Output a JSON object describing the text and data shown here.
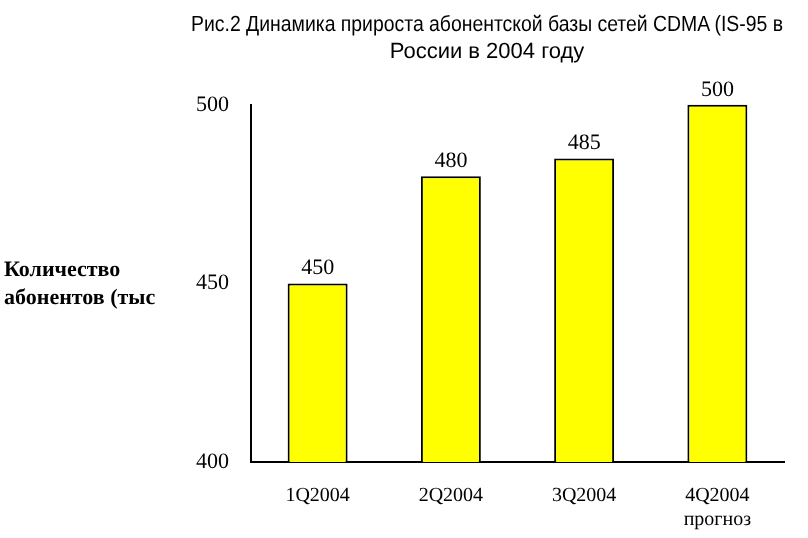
{
  "chart_data": {
    "type": "bar",
    "title": "Рис.2 Динамика прироста абонентской базы сетей CDMA (IS-95 в России в 2004 году",
    "ylabel": "Количество абонентов (тыс",
    "categories": [
      "1Q2004",
      "2Q2004",
      "3Q2004",
      "4Q2004\nпрогноз"
    ],
    "values": [
      450,
      480,
      485,
      500
    ],
    "color": "#ffff00",
    "ylim": [
      400,
      500
    ],
    "yticks": [
      400,
      450,
      500
    ],
    "grid": false,
    "data_labels": true
  }
}
